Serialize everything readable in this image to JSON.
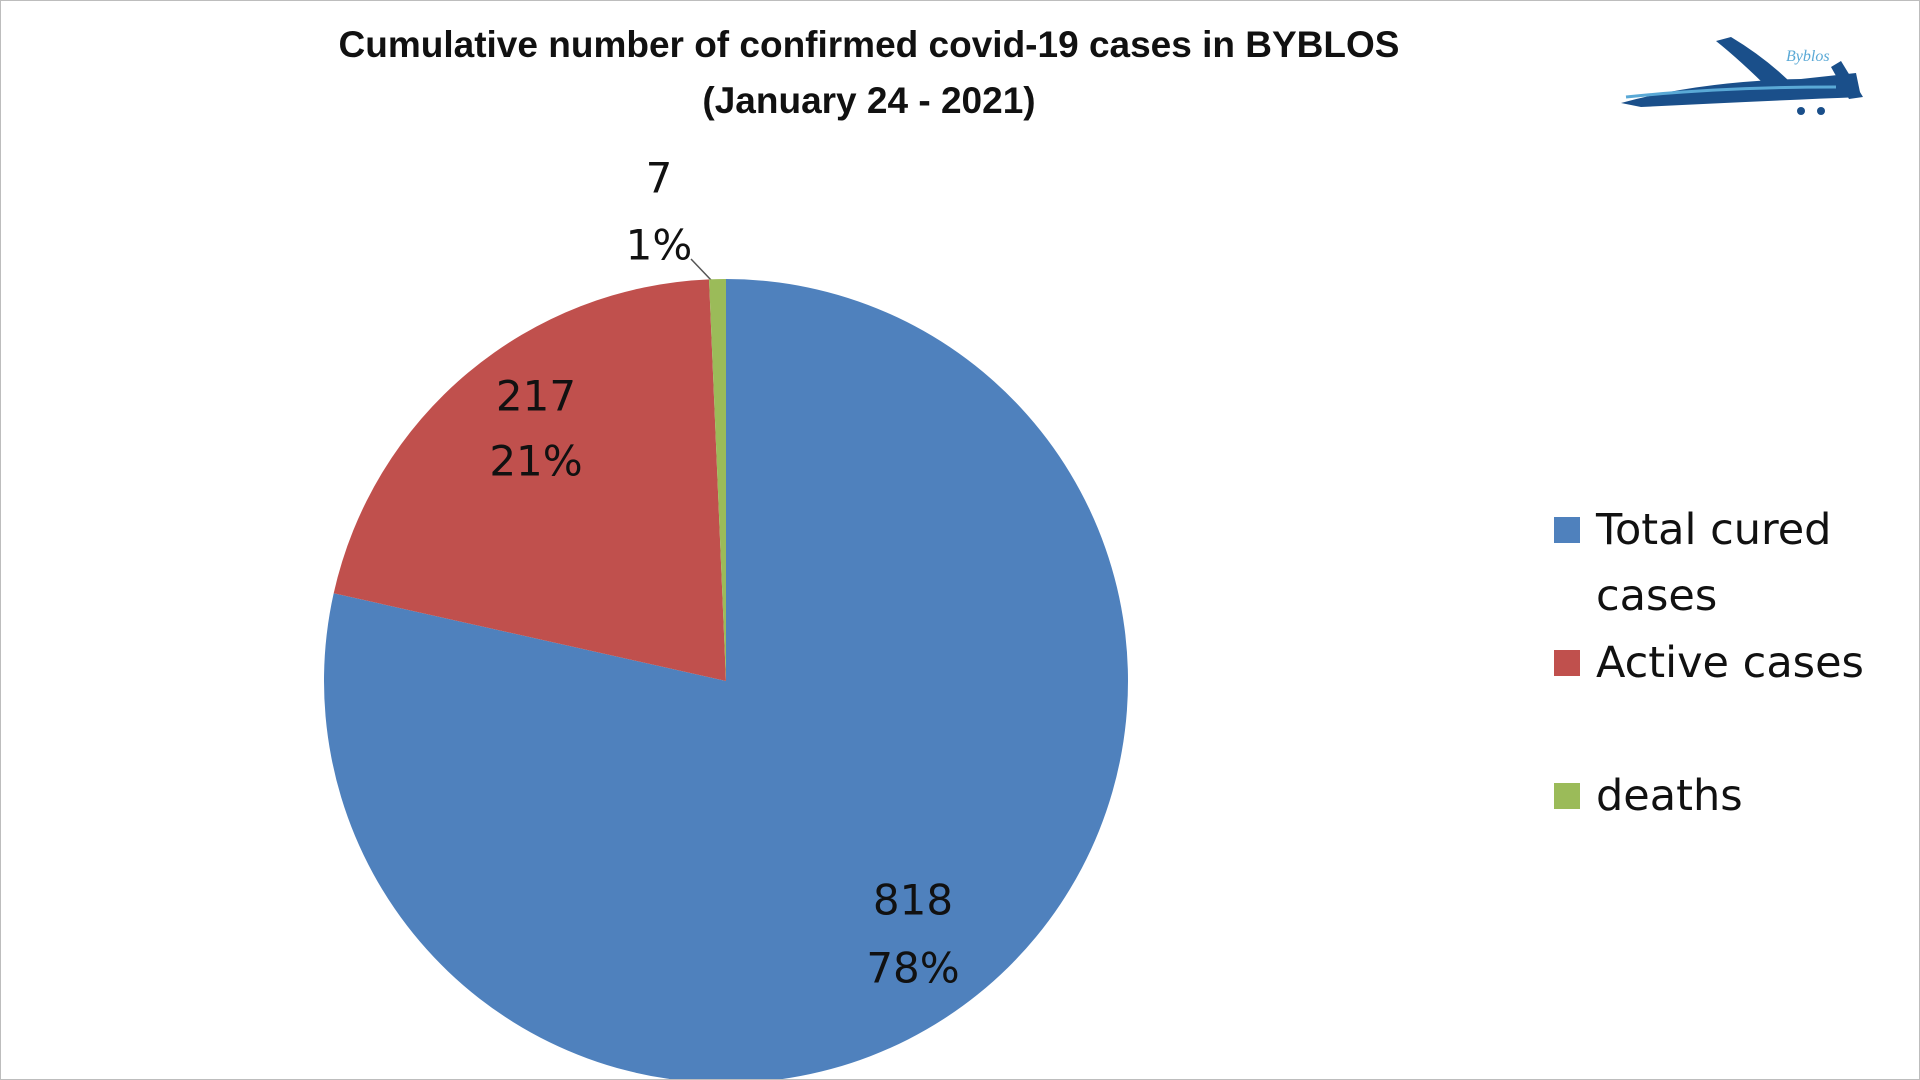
{
  "logo_text": "Byblos",
  "chart_data": {
    "type": "pie",
    "title": "Cumulative number of confirmed covid-19 cases in BYBLOS",
    "subtitle": "(January 24 - 2021)",
    "categories": [
      "Total cured cases",
      "Active cases",
      "deaths"
    ],
    "values": [
      818,
      217,
      7
    ],
    "percent_labels": [
      "78%",
      "21%",
      "1%"
    ],
    "colors": [
      "#4f81bd",
      "#c0504d",
      "#9bbb59"
    ],
    "legend": "right"
  }
}
